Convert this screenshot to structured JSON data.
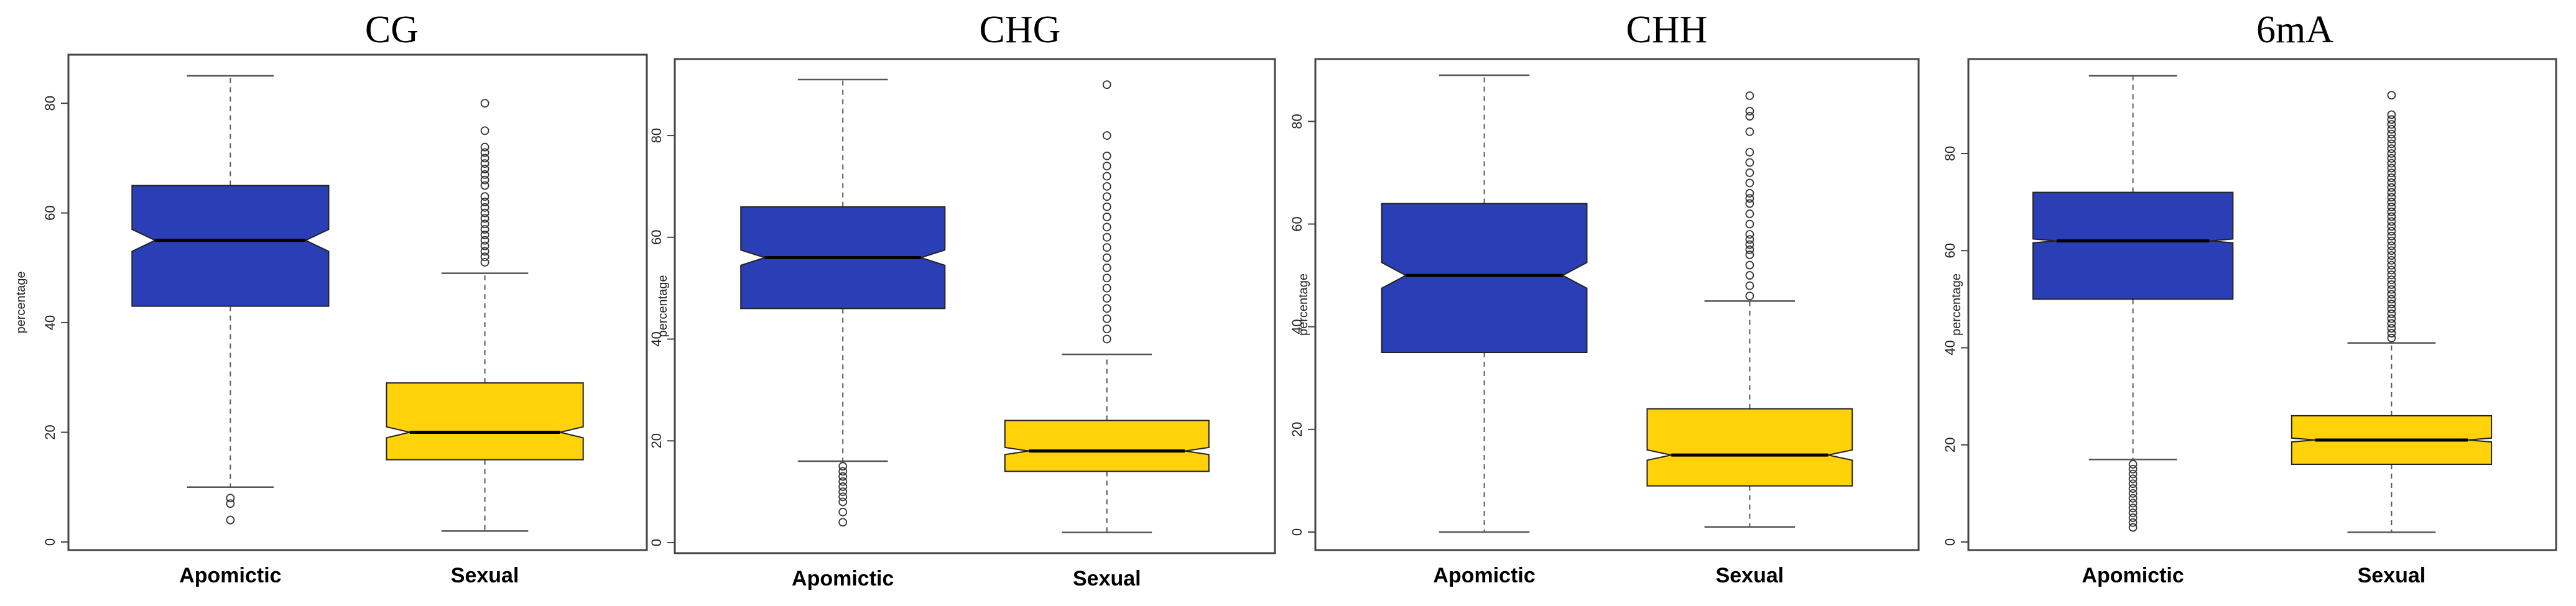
{
  "chart_data": [
    {
      "type": "boxplot",
      "title": "CG",
      "ylabel": "percentage",
      "ylim": [
        0,
        85
      ],
      "yticks": [
        0,
        20,
        40,
        60,
        80
      ],
      "categories": [
        "Apomictic",
        "Sexual"
      ],
      "series": [
        {
          "name": "Apomictic",
          "color": "#2a3fb5",
          "whisker_low": 10,
          "q1": 43,
          "median": 55,
          "q3": 65,
          "whisker_high": 85,
          "notch_low": 53,
          "notch_high": 57,
          "outliers": [
            4,
            7,
            8
          ]
        },
        {
          "name": "Sexual",
          "color": "#ffd20a",
          "whisker_low": 2,
          "q1": 15,
          "median": 20,
          "q3": 29,
          "whisker_high": 49,
          "notch_low": 19,
          "notch_high": 21,
          "outliers": [
            51,
            52,
            53,
            54,
            55,
            56,
            57,
            58,
            59,
            60,
            61,
            62,
            63,
            65,
            66,
            67,
            68,
            69,
            70,
            71,
            72,
            75,
            80
          ]
        }
      ]
    },
    {
      "type": "boxplot",
      "title": "CHG",
      "ylabel": "percentage",
      "ylim": [
        0,
        91
      ],
      "yticks": [
        0,
        20,
        40,
        60,
        80
      ],
      "categories": [
        "Apomictic",
        "Sexual"
      ],
      "series": [
        {
          "name": "Apomictic",
          "color": "#2a3fb5",
          "whisker_low": 16,
          "q1": 46,
          "median": 56,
          "q3": 66,
          "whisker_high": 91,
          "notch_low": 54.5,
          "notch_high": 57.5,
          "outliers": [
            4,
            6,
            8,
            9,
            10,
            11,
            12,
            13,
            14,
            15
          ]
        },
        {
          "name": "Sexual",
          "color": "#ffd20a",
          "whisker_low": 2,
          "q1": 14,
          "median": 18,
          "q3": 24,
          "whisker_high": 37,
          "notch_low": 17.3,
          "notch_high": 18.7,
          "outliers": [
            40,
            42,
            44,
            46,
            48,
            50,
            52,
            54,
            56,
            58,
            60,
            62,
            64,
            66,
            68,
            70,
            72,
            74,
            76,
            80,
            90
          ]
        }
      ]
    },
    {
      "type": "boxplot",
      "title": "CHH",
      "ylabel": "percentage",
      "ylim": [
        0,
        89
      ],
      "yticks": [
        0,
        20,
        40,
        60,
        80
      ],
      "categories": [
        "Apomictic",
        "Sexual"
      ],
      "series": [
        {
          "name": "Apomictic",
          "color": "#2a3fb5",
          "whisker_low": 0,
          "q1": 35,
          "median": 50,
          "q3": 64,
          "whisker_high": 89,
          "notch_low": 47.5,
          "notch_high": 52.5,
          "outliers": []
        },
        {
          "name": "Sexual",
          "color": "#ffd20a",
          "whisker_low": 1,
          "q1": 9,
          "median": 15,
          "q3": 24,
          "whisker_high": 45,
          "notch_low": 14,
          "notch_high": 16,
          "outliers": [
            46,
            48,
            50,
            52,
            54,
            55,
            56,
            57,
            58,
            60,
            62,
            64,
            65,
            66,
            68,
            70,
            72,
            74,
            78,
            81,
            82,
            85
          ]
        }
      ]
    },
    {
      "type": "boxplot",
      "title": "6mA",
      "ylabel": "percentage",
      "ylim": [
        0,
        96
      ],
      "yticks": [
        0,
        20,
        40,
        60,
        80
      ],
      "categories": [
        "Apomictic",
        "Sexual"
      ],
      "series": [
        {
          "name": "Apomictic",
          "color": "#2a3fb5",
          "whisker_low": 17,
          "q1": 50,
          "median": 62,
          "q3": 72,
          "whisker_high": 96,
          "notch_low": 61.6,
          "notch_high": 62.4,
          "outliers": [
            3,
            4,
            5,
            6,
            7,
            8,
            9,
            10,
            11,
            12,
            13,
            14,
            15,
            16
          ]
        },
        {
          "name": "Sexual",
          "color": "#ffd20a",
          "whisker_low": 2,
          "q1": 16,
          "median": 21,
          "q3": 26,
          "whisker_high": 41,
          "notch_low": 20.6,
          "notch_high": 21.4,
          "outliers": [
            42,
            43,
            44,
            45,
            46,
            47,
            48,
            49,
            50,
            51,
            52,
            53,
            54,
            55,
            56,
            57,
            58,
            59,
            60,
            61,
            62,
            63,
            64,
            65,
            66,
            67,
            68,
            69,
            70,
            71,
            72,
            73,
            74,
            75,
            76,
            77,
            78,
            79,
            80,
            81,
            82,
            83,
            84,
            85,
            86,
            87,
            88,
            92
          ]
        }
      ]
    }
  ]
}
